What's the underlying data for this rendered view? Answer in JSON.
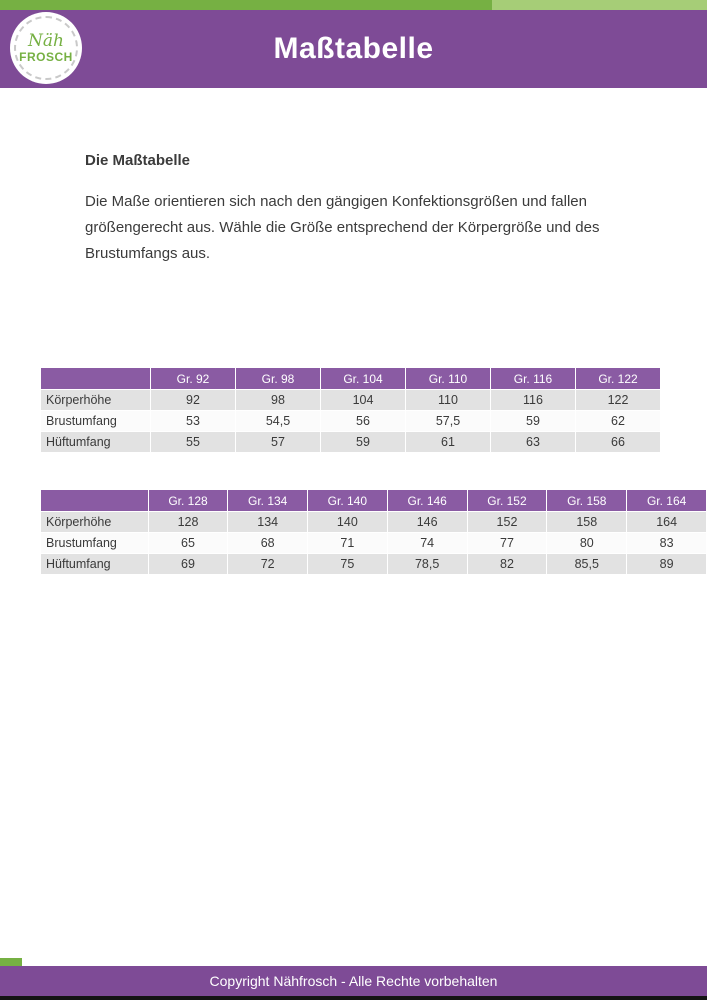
{
  "header": {
    "title": "Maßtabelle",
    "logo": {
      "line1": "Näh",
      "line2": "FROSCH"
    }
  },
  "content": {
    "heading": "Die Maßtabelle",
    "paragraph": "Die Maße orientieren sich nach den gängigen Konfektionsgrößen und fallen größengerecht aus. Wähle die Größe entsprechend der Körpergröße und des Brustumfangs aus."
  },
  "tables": [
    {
      "columns": [
        "",
        "Gr. 92",
        "Gr. 98",
        "Gr. 104",
        "Gr. 110",
        "Gr. 116",
        "Gr. 122"
      ],
      "rows": [
        {
          "label": "Körperhöhe",
          "values": [
            "92",
            "98",
            "104",
            "110",
            "116",
            "122"
          ]
        },
        {
          "label": "Brustumfang",
          "values": [
            "53",
            "54,5",
            "56",
            "57,5",
            "59",
            "62"
          ]
        },
        {
          "label": "Hüftumfang",
          "values": [
            "55",
            "57",
            "59",
            "61",
            "63",
            "66"
          ]
        }
      ]
    },
    {
      "columns": [
        "",
        "Gr. 128",
        "Gr. 134",
        "Gr. 140",
        "Gr. 146",
        "Gr. 152",
        "Gr. 158",
        "Gr. 164"
      ],
      "rows": [
        {
          "label": "Körperhöhe",
          "values": [
            "128",
            "134",
            "140",
            "146",
            "152",
            "158",
            "164"
          ]
        },
        {
          "label": "Brustumfang",
          "values": [
            "65",
            "68",
            "71",
            "74",
            "77",
            "80",
            "83"
          ]
        },
        {
          "label": "Hüftumfang",
          "values": [
            "69",
            "72",
            "75",
            "78,5",
            "82",
            "85,5",
            "89"
          ]
        }
      ]
    }
  ],
  "footer": {
    "text": "Copyright Nähfrosch - Alle Rechte vorbehalten"
  },
  "colors": {
    "purple": "#7e4b96",
    "table_header_purple": "#8a5ba3",
    "green": "#76b043",
    "light_green": "#a6cd77"
  }
}
